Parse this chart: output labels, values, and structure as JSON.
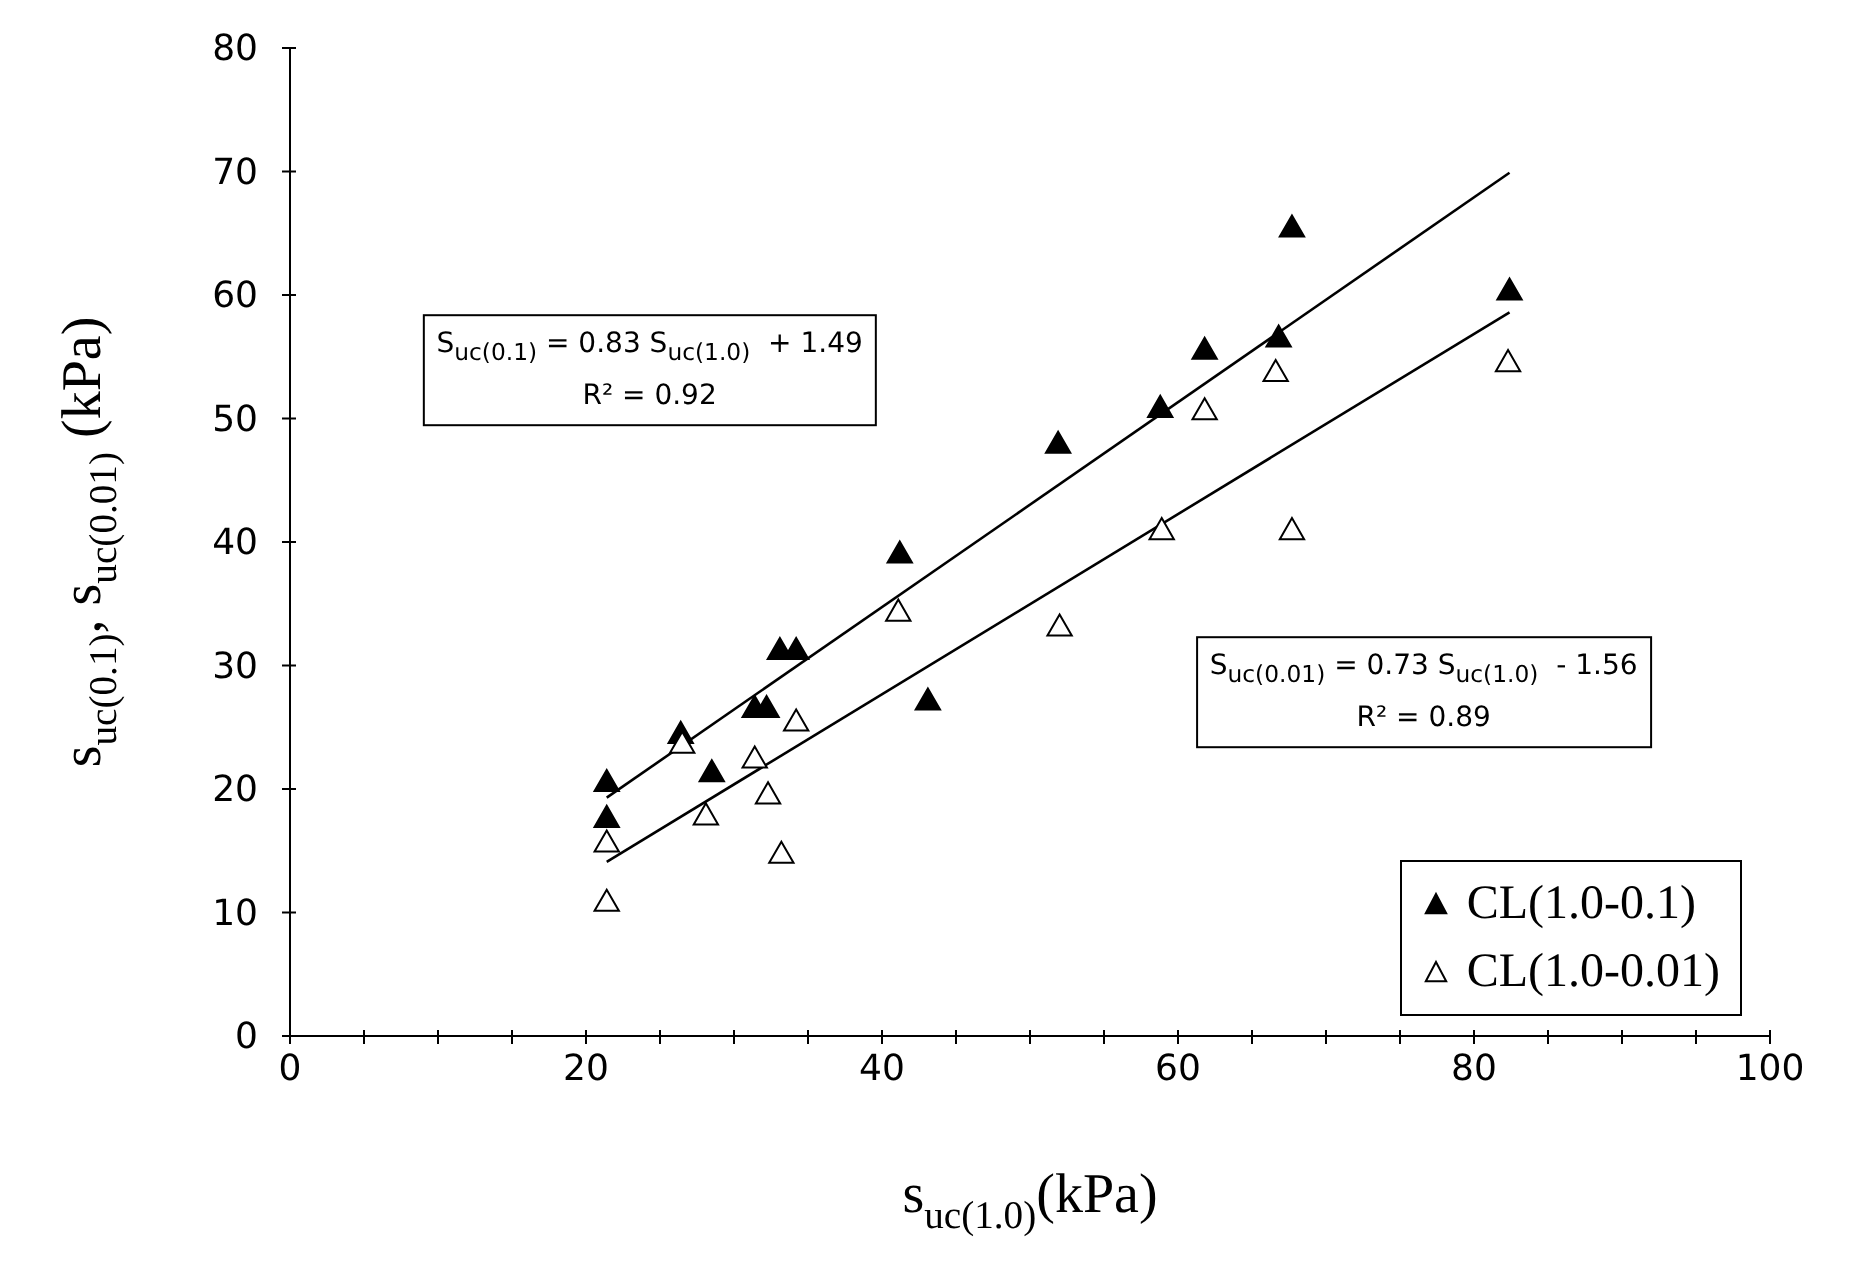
{
  "chart_data": {
    "type": "scatter",
    "xlabel": "s$_{uc(1.0)}$(kPa)",
    "ylabel": "s$_{uc(0.1)}$,  s$_{uc(0.01)}$ (kPa)",
    "xlim": [
      0,
      100
    ],
    "xticks": [
      0,
      {
        "value": 5,
        "label": null
      },
      {
        "value": 10,
        "label": null
      },
      {
        "value": 15,
        "label": null
      },
      20,
      {
        "value": 25,
        "label": null
      },
      {
        "value": 30,
        "label": null
      },
      {
        "value": 35,
        "label": null
      },
      40,
      {
        "value": 45,
        "label": null
      },
      {
        "value": 50,
        "label": null
      },
      {
        "value": 55,
        "label": null
      },
      60,
      {
        "value": 65,
        "label": null
      },
      {
        "value": 70,
        "label": null
      },
      {
        "value": 75,
        "label": null
      },
      80,
      {
        "value": 85,
        "label": null
      },
      {
        "value": 90,
        "label": null
      },
      {
        "value": 95,
        "label": null
      },
      100
    ],
    "ylim": [
      0,
      80
    ],
    "yticks": [
      0,
      10,
      20,
      30,
      40,
      50,
      60,
      70,
      80
    ],
    "grid": false,
    "legend": "bottom right",
    "marker": "triangle",
    "series": [
      {
        "name": "CL(1.0-0.1)",
        "color": "#000000",
        "x": [
          21.4,
          21.4,
          26.4,
          28.5,
          31.4,
          32.2,
          33.1,
          34.2,
          41.2,
          43.1,
          51.9,
          58.8,
          61.8,
          66.8,
          67.7,
          82.4
        ],
        "values": [
          17.5,
          20.4,
          24.3,
          21.2,
          26.4,
          26.4,
          31.1,
          31.1,
          38.9,
          27.0,
          47.8,
          50.7,
          55.4,
          56.4,
          65.3,
          60.2
        ]
      },
      {
        "name": "CL(1.0-0.01)",
        "color": "#000000",
        "x": [
          21.4,
          21.4,
          26.5,
          28.1,
          31.4,
          32.3,
          33.2,
          34.2,
          41.1,
          52.0,
          58.9,
          61.8,
          66.6,
          67.7,
          82.3
        ],
        "values": [
          10.7,
          15.5,
          23.5,
          17.7,
          22.3,
          19.4,
          14.6,
          25.3,
          34.2,
          33.0,
          40.8,
          50.5,
          53.6,
          40.8,
          54.4
        ]
      },
      {
        "type": "line",
        "marker": "none",
        "color": "#000000",
        "x": [
          21.4,
          82.4
        ],
        "values": [
          19.3,
          69.9
        ]
      },
      {
        "type": "line",
        "marker": "none",
        "color": "#000000",
        "x": [
          21.4,
          82.4
        ],
        "values": [
          14.1,
          58.6
        ]
      }
    ],
    "annotations": [
      "S$_{uc(0.1)}$ = 0.83 S$_{uc(1.0)}$  + 1.49\nR² = 0.92",
      "S$_{uc(0.01)}$ = 0.73 S$_{uc(1.0)}$  - 1.56\nR² = 0.89"
    ]
  }
}
